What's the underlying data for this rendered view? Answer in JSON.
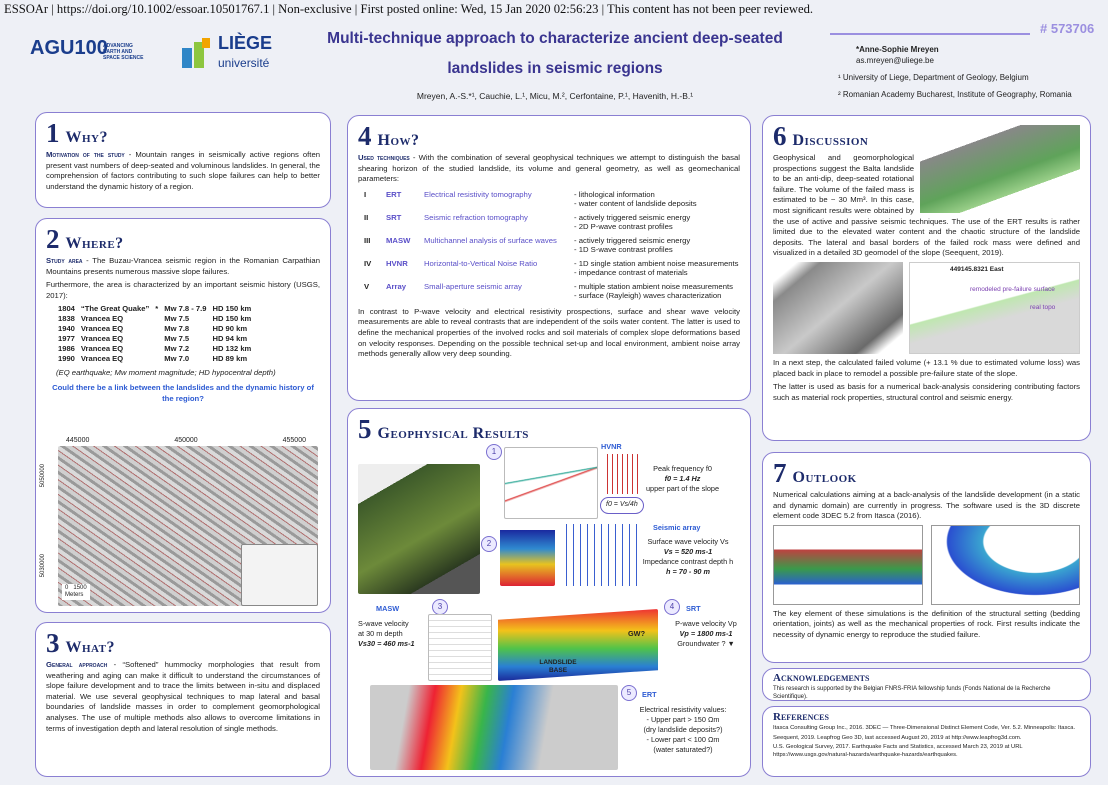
{
  "header": {
    "banner": "ESSOAr | https://doi.org/10.1002/essoar.10501767.1 | Non-exclusive | First posted online: Wed, 15 Jan 2020 02:56:23 | This content has not been peer reviewed.",
    "logo_agu": "AGU100",
    "logo_agu_sub": "ADVANCING EARTH AND SPACE SCIENCE",
    "logo_liege": "LIÈGE",
    "logo_liege_sub": "université",
    "title_line1": "Multi-technique approach to characterize ancient deep-seated",
    "title_line2": "landslides in seismic regions",
    "poster_id": "# 573706",
    "authors": "Mreyen, A.-S.*¹, Cauchie, L.¹, Micu, M.², Cerfontaine, P.¹, Havenith, H.-B.¹",
    "contact_name": "*Anne-Sophie Mreyen",
    "contact_email": "as.mreyen@uliege.be",
    "affiliations": [
      "¹ University of Liege, Department of Geology, Belgium",
      "² Romanian Academy Bucharest, Institute of Geography, Romania"
    ]
  },
  "why": {
    "num": "1",
    "title": "Why?",
    "label": "Motivation of the study",
    "text": " - Mountain ranges in seismically active regions often present vast numbers of deep-seated and voluminous landslides. In general, the comprehension of factors contributing to such slope failures can help to better understand the dynamic history of a region."
  },
  "where": {
    "num": "2",
    "title": "Where?",
    "label": "Study area",
    "text": " - The Buzau-Vrancea seismic region in the Romanian Carpathian Mountains presents numerous massive slope failures.",
    "text2": "Furthermore, the area is characterized by an important seismic history (USGS, 2017):",
    "events": [
      [
        "1804",
        "“The Great Quake”",
        "*",
        "Mw 7.8 - 7.9",
        "HD 150 km"
      ],
      [
        "1838",
        "Vrancea EQ",
        "",
        "Mw 7.5",
        "HD 150 km"
      ],
      [
        "1940",
        "Vrancea EQ",
        "",
        "Mw 7.8",
        "HD 90 km"
      ],
      [
        "1977",
        "Vrancea EQ",
        "",
        "Mw 7.5",
        "HD 94 km"
      ],
      [
        "1986",
        "Vrancea EQ",
        "",
        "Mw 7.2",
        "HD 132 km"
      ],
      [
        "1990",
        "Vrancea EQ",
        "",
        "Mw 7.0",
        "HD 89 km"
      ]
    ],
    "note": "(EQ earthquake; Mw moment magnitude; HD hypocentral depth)",
    "question": "Could there be a link between the landslides and the dynamic history of the region?",
    "map_x": [
      "445000",
      "450000",
      "455000"
    ],
    "map_y": [
      "5050000",
      "5030000"
    ],
    "map_scale": [
      "0",
      "1500",
      "Meters"
    ]
  },
  "what": {
    "num": "3",
    "title": "What?",
    "label": "General approach",
    "text": " - “Softened” hummocky morphologies that result from weathering and aging can make it difficult to understand the circumstances of slope failure development and to trace the limits between in-situ and displaced material. We use several geophysical techniques to map lateral and basal boundaries of landslide masses in order to complement geomorphological analyses. The use of multiple methods also allows to overcome limitations in terms of investigation depth and lateral resolution of single methods."
  },
  "how": {
    "num": "4",
    "title": "How?",
    "label": "Used techniques",
    "intro": " - With the combination of several geophysical techniques we attempt to distinguish the basal shearing horizon of the studied landslide, its volume and general geometry, as well as geomechanical parameters:",
    "techniques": [
      {
        "num": "I",
        "abbr": "ERT",
        "name": "Electrical resistivity tomography",
        "info": [
          "- lithological information",
          "- water content of landslide deposits"
        ]
      },
      {
        "num": "II",
        "abbr": "SRT",
        "name": "Seismic refraction tomography",
        "info": [
          "- actively triggered seismic energy",
          "- 2D P-wave contrast profiles"
        ]
      },
      {
        "num": "III",
        "abbr": "MASW",
        "name": "Multichannel analysis of surface waves",
        "info": [
          "- actively triggered seismic energy",
          "- 1D S-wave contrast profiles"
        ]
      },
      {
        "num": "IV",
        "abbr": "HVNR",
        "name": "Horizontal-to-Vertical Noise Ratio",
        "info": [
          "- 1D single station ambient noise measurements",
          "- impedance contrast of materials"
        ]
      },
      {
        "num": "V",
        "abbr": "Array",
        "name": "Small-aperture seismic array",
        "info": [
          "- multiple station ambient noise measurements",
          "- surface (Rayleigh) waves characterization"
        ]
      }
    ],
    "text": "In contrast to P-wave velocity and electrical resistivity prospections, surface and shear wave velocity measurements are able to reveal contrasts that are independent of the soils water content. The latter is used to define the mechanical properties of the involved rocks and soil materials of complex slope deformations based on velocity responses. Depending on the possible technical set-up and local environment, ambient noise array methods generally allow very deep sounding."
  },
  "results": {
    "num": "5",
    "title": "Geophysical Results",
    "hvnr": {
      "n": "1",
      "label": "HVNR",
      "lines": [
        "Peak frequency f0",
        "f0 = 1.4 Hz",
        "upper part of the slope"
      ],
      "formula": "f0 = Vs/4h"
    },
    "array": {
      "n": "2",
      "label": "Seismic array",
      "lines": [
        "Surface wave velocity Vs",
        "Vs = 520 ms-1",
        "Impedance contrast depth h",
        "h = 70 - 90 m"
      ]
    },
    "masw": {
      "n": "3",
      "label": "MASW",
      "lines": [
        "S-wave velocity",
        "at 30 m depth",
        "Vs30 = 460 ms-1"
      ]
    },
    "srt": {
      "n": "4",
      "label": "SRT",
      "lines": [
        "P-wave velocity Vp",
        "Vp = 1800 ms-1",
        "Groundwater ? ▼"
      ],
      "img_labels": [
        "GW?",
        "LANDSLIDE BASE"
      ]
    },
    "ert": {
      "n": "5",
      "label": "ERT",
      "lines": [
        "Electrical resistivity values:",
        "- Upper part > 150 Ωm",
        "(dry landslide deposits?)",
        "- Lower part < 100 Ωm",
        "(water saturated?)"
      ]
    }
  },
  "discussion": {
    "num": "6",
    "title": "Discussion",
    "p1": "Geophysical and geomorphological prospections suggest the Balta landslide to be an anti-dip, deep-seated rotational failure. The volume of the failed mass is estimated to be ~ 30 Mm³. In this case, most significant results were obtained by the use of active and passive seismic techniques. The use of the ERT results is rather limited due to the elevated water content and the chaotic structure of the landslide deposits. The lateral and basal borders of the failed rock mass were defined and visualized in a detailed 3D geomodel of the slope (Seequent, 2019).",
    "fig_labels": [
      "449145.8321 East",
      "remodeled pre-failure surface",
      "real topo"
    ],
    "p2": "In a next step, the calculated failed volume (+ 13.1 % due to estimated volume loss) was placed back in place to remodel a possible pre-failure state of the slope.",
    "p3": "The latter is used as basis for a numerical back-analysis considering contributing factors such as material rock properties, structural control and seismic energy."
  },
  "outlook": {
    "num": "7",
    "title": "Outlook",
    "p1": "Numerical calculations aiming at a back-analysis of the landslide development (in a static and dynamic domain) are currently in progress. The software used is the 3D discrete element code 3DEC 5.2 from Itasca (2016).",
    "p2": "The key element of these simulations is the definition of the structural setting (bedding orientation, joints) as well as the mechanical properties of rock. First results indicate the necessity of dynamic energy to reproduce the studied failure."
  },
  "acknowledgements": {
    "title": "Acknowledgements",
    "text": "This research is supported by the Belgian FNRS-FRIA fellowship funds (Fonds National de la Recherche Scientifique)."
  },
  "references": {
    "title": "References",
    "items": [
      "Itasca Consulting Group Inc., 2016. 3DEC — Three-Dimensional Distinct Element Code, Ver. 5.2. Minneapolis: Itasca.",
      "Seequent, 2019. Leapfrog Geo 3D, last accessed August 20, 2019 at http://www.leapfrog3d.com.",
      "U.S. Geological Survey, 2017. Earthquake Facts and Statistics, accessed March 23, 2019 at URL https://www.usgs.gov/natural-hazards/earthquake-hazards/earthquakes."
    ]
  }
}
